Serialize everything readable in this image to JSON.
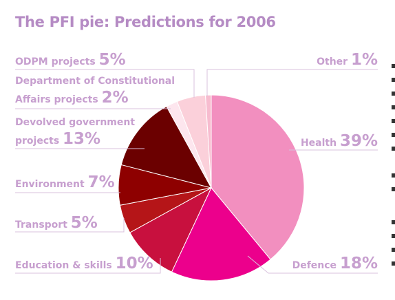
{
  "colors": {
    "title": "#b58bc4",
    "label": "#c79fcf",
    "leader": "#d8c0dc"
  },
  "chart_data": {
    "type": "pie",
    "title": "The PFI pie: Predictions for 2006",
    "unit": "%",
    "slices": [
      {
        "name": "Health",
        "value": 39,
        "color": "#f28fbf"
      },
      {
        "name": "Defence",
        "value": 18,
        "color": "#ec008c"
      },
      {
        "name": "Education & skills",
        "value": 10,
        "color": "#c8103e"
      },
      {
        "name": "Transport",
        "value": 5,
        "color": "#b51518"
      },
      {
        "name": "Environment",
        "value": 7,
        "color": "#8e0000"
      },
      {
        "name": "Devolved government projects",
        "value": 13,
        "color": "#6b0000"
      },
      {
        "name": "Department of Constitutional Affairs projects",
        "value": 2,
        "color": "#fde6ee"
      },
      {
        "name": "ODPM projects",
        "value": 5,
        "color": "#fbd0da"
      },
      {
        "name": "Other",
        "value": 1,
        "color": "#f7bccf"
      }
    ]
  }
}
